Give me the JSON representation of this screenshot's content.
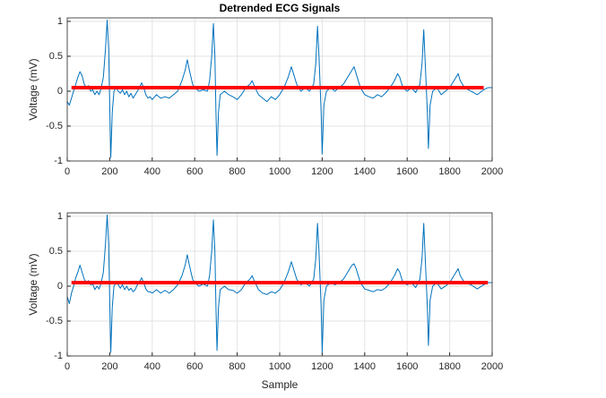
{
  "chart_data": [
    {
      "type": "line",
      "title": "Detrended ECG Signals",
      "ylabel": "Voltage (mV)",
      "xlim": [
        0,
        2000
      ],
      "ylim": [
        -1,
        1.05
      ],
      "xticks": [
        0,
        200,
        400,
        600,
        800,
        1000,
        1200,
        1400,
        1600,
        1800,
        2000
      ],
      "yticks": [
        -1,
        -0.5,
        0,
        0.5,
        1
      ],
      "grid": true,
      "series": [
        {
          "color": "#0072bd",
          "line_width": 1,
          "x": [
            0,
            10,
            20,
            30,
            40,
            50,
            60,
            70,
            80,
            90,
            100,
            110,
            120,
            130,
            140,
            150,
            160,
            170,
            180,
            188,
            195,
            200,
            205,
            212,
            220,
            230,
            240,
            250,
            260,
            270,
            280,
            290,
            300,
            310,
            320,
            330,
            340,
            350,
            360,
            370,
            380,
            390,
            400,
            420,
            440,
            460,
            480,
            500,
            520,
            540,
            555,
            565,
            575,
            590,
            600,
            620,
            640,
            660,
            670,
            680,
            688,
            695,
            700,
            705,
            712,
            720,
            740,
            760,
            780,
            800,
            820,
            840,
            860,
            870,
            880,
            900,
            920,
            940,
            960,
            980,
            1000,
            1020,
            1040,
            1055,
            1065,
            1080,
            1100,
            1120,
            1140,
            1160,
            1170,
            1178,
            1185,
            1195,
            1200,
            1208,
            1220,
            1240,
            1260,
            1280,
            1300,
            1320,
            1340,
            1350,
            1360,
            1380,
            1400,
            1420,
            1440,
            1460,
            1480,
            1500,
            1520,
            1540,
            1555,
            1565,
            1580,
            1600,
            1620,
            1640,
            1660,
            1670,
            1678,
            1685,
            1695,
            1700,
            1708,
            1720,
            1740,
            1760,
            1780,
            1800,
            1820,
            1840,
            1850,
            1870,
            1900,
            1930,
            1960,
            1980,
            2000
          ],
          "values": [
            -0.15,
            -0.2,
            -0.1,
            0.0,
            0.1,
            0.2,
            0.28,
            0.22,
            0.1,
            0.05,
            0.08,
            0.0,
            0.02,
            -0.05,
            0.0,
            -0.05,
            0.05,
            0.2,
            0.6,
            1.02,
            0.6,
            -0.2,
            -0.95,
            -0.3,
            0.0,
            0.05,
            0.0,
            -0.03,
            0.02,
            -0.05,
            0.0,
            -0.08,
            -0.03,
            -0.1,
            -0.05,
            0.0,
            0.05,
            0.12,
            0.05,
            -0.05,
            -0.1,
            -0.08,
            -0.12,
            -0.05,
            -0.1,
            -0.08,
            -0.1,
            -0.05,
            0.0,
            0.15,
            0.3,
            0.45,
            0.3,
            0.1,
            0.05,
            0.0,
            0.02,
            0.0,
            0.15,
            0.5,
            0.97,
            0.5,
            -0.3,
            -0.92,
            -0.3,
            -0.05,
            0.0,
            -0.05,
            -0.08,
            -0.12,
            -0.05,
            0.05,
            0.1,
            0.15,
            0.08,
            -0.05,
            -0.1,
            -0.15,
            -0.08,
            -0.12,
            -0.05,
            0.05,
            0.2,
            0.35,
            0.25,
            0.1,
            0.0,
            0.05,
            0.0,
            0.1,
            0.4,
            0.93,
            0.5,
            -0.3,
            -0.9,
            -0.2,
            0.0,
            0.05,
            0.0,
            0.05,
            0.1,
            0.2,
            0.3,
            0.35,
            0.25,
            0.05,
            -0.05,
            -0.08,
            -0.1,
            -0.05,
            -0.08,
            -0.02,
            0.05,
            0.15,
            0.25,
            0.2,
            0.05,
            0.0,
            0.05,
            -0.02,
            0.1,
            0.4,
            0.88,
            0.4,
            -0.3,
            -0.82,
            -0.2,
            0.0,
            0.05,
            -0.05,
            0.0,
            0.05,
            0.15,
            0.25,
            0.15,
            0.05,
            0.0,
            -0.05,
            0.02,
            0.05,
            0.05
          ]
        },
        {
          "color": "#ff0000",
          "line_width": 4,
          "x": [
            20,
            1960
          ],
          "values": [
            0.05,
            0.05
          ]
        }
      ]
    },
    {
      "type": "line",
      "ylabel": "Voltage (mV)",
      "xlabel": "Sample",
      "xlim": [
        0,
        2000
      ],
      "ylim": [
        -1,
        1.05
      ],
      "xticks": [
        0,
        200,
        400,
        600,
        800,
        1000,
        1200,
        1400,
        1600,
        1800,
        2000
      ],
      "yticks": [
        -1,
        -0.5,
        0,
        0.5,
        1
      ],
      "grid": true,
      "series": [
        {
          "color": "#0072bd",
          "line_width": 1,
          "x": [
            0,
            10,
            20,
            30,
            40,
            50,
            60,
            70,
            80,
            90,
            100,
            110,
            120,
            130,
            140,
            150,
            160,
            170,
            180,
            188,
            195,
            200,
            205,
            212,
            220,
            230,
            240,
            250,
            260,
            270,
            280,
            290,
            300,
            310,
            320,
            330,
            340,
            350,
            360,
            370,
            380,
            390,
            400,
            420,
            440,
            460,
            480,
            500,
            520,
            540,
            555,
            565,
            575,
            590,
            600,
            620,
            640,
            660,
            670,
            680,
            688,
            695,
            700,
            705,
            712,
            720,
            740,
            760,
            780,
            800,
            820,
            840,
            860,
            870,
            880,
            900,
            920,
            940,
            960,
            980,
            1000,
            1020,
            1040,
            1055,
            1065,
            1080,
            1100,
            1120,
            1140,
            1160,
            1170,
            1178,
            1185,
            1195,
            1200,
            1208,
            1220,
            1240,
            1260,
            1280,
            1300,
            1320,
            1340,
            1350,
            1360,
            1380,
            1400,
            1420,
            1440,
            1460,
            1480,
            1500,
            1520,
            1540,
            1555,
            1565,
            1580,
            1600,
            1620,
            1640,
            1660,
            1670,
            1678,
            1685,
            1695,
            1700,
            1708,
            1720,
            1740,
            1760,
            1780,
            1800,
            1820,
            1840,
            1850,
            1870,
            1900,
            1930,
            1960,
            1980,
            2000
          ],
          "values": [
            -0.15,
            -0.25,
            -0.1,
            0.0,
            0.12,
            0.2,
            0.3,
            0.2,
            0.1,
            0.05,
            0.08,
            0.02,
            0.03,
            -0.05,
            0.0,
            -0.04,
            0.05,
            0.2,
            0.6,
            1.02,
            0.6,
            -0.2,
            -0.95,
            -0.3,
            0.0,
            0.05,
            0.02,
            -0.03,
            0.02,
            -0.05,
            0.0,
            -0.06,
            -0.03,
            -0.08,
            -0.05,
            0.02,
            0.06,
            0.12,
            0.05,
            -0.04,
            -0.08,
            -0.08,
            -0.1,
            -0.05,
            -0.1,
            -0.06,
            -0.1,
            -0.05,
            0.02,
            0.15,
            0.3,
            0.45,
            0.3,
            0.1,
            0.05,
            0.0,
            0.03,
            0.0,
            0.15,
            0.5,
            0.95,
            0.5,
            -0.3,
            -0.92,
            -0.3,
            -0.05,
            0.0,
            -0.05,
            -0.06,
            -0.1,
            -0.05,
            0.05,
            0.1,
            0.15,
            0.08,
            -0.05,
            -0.1,
            -0.12,
            -0.08,
            -0.1,
            -0.05,
            0.05,
            0.2,
            0.35,
            0.25,
            0.1,
            0.02,
            0.05,
            0.0,
            0.1,
            0.4,
            0.9,
            0.5,
            -0.3,
            -0.95,
            -0.2,
            0.0,
            0.05,
            0.02,
            0.05,
            0.1,
            0.2,
            0.3,
            0.32,
            0.25,
            0.05,
            -0.04,
            -0.06,
            -0.08,
            -0.05,
            -0.06,
            -0.02,
            0.05,
            0.15,
            0.25,
            0.2,
            0.05,
            0.02,
            0.05,
            -0.02,
            0.1,
            0.4,
            0.9,
            0.4,
            -0.3,
            -0.85,
            -0.2,
            0.0,
            0.05,
            -0.04,
            0.0,
            0.05,
            0.15,
            0.25,
            0.15,
            0.05,
            0.02,
            -0.04,
            0.02,
            0.05,
            0.05
          ]
        },
        {
          "color": "#ff0000",
          "line_width": 4,
          "x": [
            20,
            1980
          ],
          "values": [
            0.05,
            0.05
          ]
        }
      ]
    }
  ]
}
